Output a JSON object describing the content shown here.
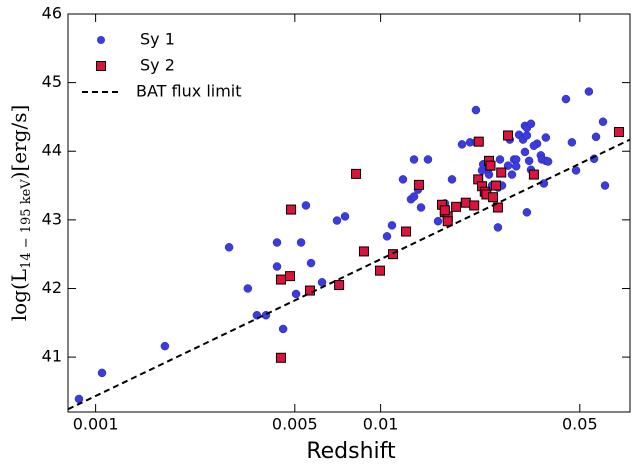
{
  "chart_data": {
    "type": "scatter",
    "xlabel": "Redshift",
    "ylabel": {
      "text": "log(L",
      "sub": "14 − 195 keV",
      "tail": ")[erg/s]"
    },
    "xscale": "log",
    "xlim": [
      0.0008,
      0.075
    ],
    "xticks": [
      0.001,
      0.005,
      0.01,
      0.05
    ],
    "ylim": [
      40.2,
      46
    ],
    "yticks": [
      41,
      42,
      43,
      44,
      45,
      46
    ],
    "legend": "upper left",
    "series": [
      {
        "name": "Sy 1",
        "color": "#3b3bdf",
        "marker": "circle",
        "x": [
          0.000874,
          0.001053,
          0.00175,
          0.00294,
          0.00342,
          0.00368,
          0.00396,
          0.00433,
          0.00433,
          0.00455,
          0.00526,
          0.00505,
          0.00547,
          0.0057,
          0.00623,
          0.00703,
          0.0075,
          0.01053,
          0.01096,
          0.01198,
          0.01278,
          0.0131,
          0.0131,
          0.01466,
          0.0159,
          0.01682,
          0.0178,
          0.0193,
          0.0206,
          0.0216,
          0.0216,
          0.02197,
          0.02268,
          0.0229,
          0.024,
          0.0246,
          0.0258,
          0.0258,
          0.02624,
          0.02667,
          0.028,
          0.0289,
          0.0294,
          0.0299,
          0.0299,
          0.0306,
          0.0316,
          0.0321,
          0.0321,
          0.0326,
          0.0326,
          0.0326,
          0.0332,
          0.0337,
          0.0337,
          0.0354,
          0.0365,
          0.0368,
          0.038,
          0.0374,
          0.0387,
          0.0447,
          0.0469,
          0.0485,
          0.0538,
          0.057,
          0.0561,
          0.0603,
          0.0613,
          0.038,
          0.0345,
          0.0284,
          0.024,
          0.0252,
          0.01353,
          0.01386
        ],
        "values": [
          40.39,
          40.77,
          41.16,
          42.6,
          42.0,
          41.61,
          41.61,
          42.67,
          42.32,
          41.41,
          42.67,
          41.92,
          43.21,
          42.37,
          42.09,
          42.99,
          43.05,
          42.76,
          42.92,
          43.59,
          43.3,
          43.88,
          43.34,
          43.88,
          42.98,
          43.24,
          43.59,
          44.1,
          44.13,
          44.6,
          44.13,
          43.59,
          43.72,
          43.81,
          43.66,
          43.5,
          43.47,
          42.89,
          43.88,
          43.5,
          43.79,
          43.66,
          43.88,
          43.88,
          43.78,
          44.24,
          44.17,
          44.37,
          43.99,
          44.23,
          43.11,
          44.34,
          43.86,
          44.4,
          43.73,
          44.11,
          43.94,
          43.88,
          43.86,
          43.53,
          43.85,
          44.76,
          44.13,
          43.72,
          44.87,
          44.21,
          43.89,
          44.43,
          43.5,
          44.2,
          44.08,
          44.17,
          43.75,
          43.51,
          43.44,
          43.18
        ]
      },
      {
        "name": "Sy 2",
        "color": "#dc143c",
        "marker": "square",
        "x": [
          0.00447,
          0.00447,
          0.00481,
          0.00485,
          0.00565,
          0.00715,
          0.0082,
          0.00874,
          0.00995,
          0.01105,
          0.01228,
          0.01363,
          0.01642,
          0.0168,
          0.0172,
          0.0172,
          0.0168,
          0.0184,
          0.0199,
          0.0213,
          0.022,
          0.0221,
          0.0227,
          0.0232,
          0.0235,
          0.024,
          0.0243,
          0.0248,
          0.0254,
          0.0258,
          0.0265,
          0.028,
          0.0345,
          0.0686
        ],
        "values": [
          40.99,
          42.13,
          42.18,
          43.15,
          41.97,
          42.05,
          43.67,
          42.54,
          42.26,
          42.5,
          42.83,
          43.51,
          43.22,
          43.11,
          43.05,
          42.98,
          43.14,
          43.19,
          43.25,
          43.21,
          43.59,
          44.14,
          43.49,
          43.41,
          43.37,
          43.86,
          43.79,
          43.33,
          43.5,
          43.18,
          43.69,
          44.23,
          43.66,
          44.28
        ]
      },
      {
        "name": "BAT flux limit",
        "color": "#000000",
        "marker": "dashed-line",
        "x": [
          0.0008,
          0.075
        ],
        "values": [
          40.24,
          44.17
        ]
      }
    ]
  }
}
